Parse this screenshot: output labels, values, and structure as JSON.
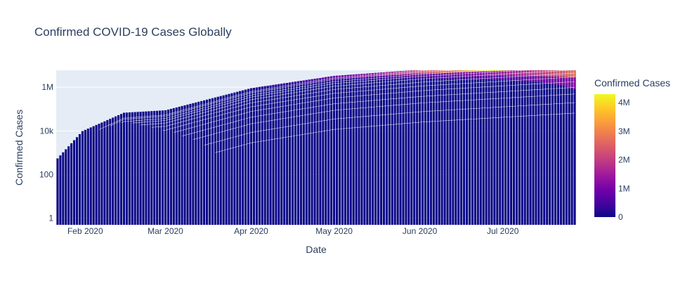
{
  "chart_data": {
    "type": "bar",
    "barmode": "stacked",
    "title": "Confirmed COVID-19 Cases Globally",
    "xlabel": "Date",
    "ylabel": "Confirmed Cases",
    "y_scale": "log",
    "x_range": [
      "2020-01-22",
      "2020-07-27"
    ],
    "x_ticks": [
      "Feb 2020",
      "Mar 2020",
      "Apr 2020",
      "May 2020",
      "Jun 2020",
      "Jul 2020"
    ],
    "x_tick_dates": [
      "2020-02-01",
      "2020-03-01",
      "2020-04-01",
      "2020-05-01",
      "2020-06-01",
      "2020-07-01"
    ],
    "y_ticks": [
      "1",
      "100",
      "10k",
      "1M"
    ],
    "y_tick_values": [
      1,
      100,
      10000,
      1000000
    ],
    "ylim": [
      0.5,
      6000000
    ],
    "grid": true,
    "colorbar": {
      "title": "Confirmed Cases",
      "ticks": [
        "0",
        "1M",
        "2M",
        "3M",
        "4M"
      ],
      "tick_values": [
        0,
        1000000,
        2000000,
        3000000,
        4000000
      ],
      "range": [
        0,
        4300000
      ],
      "colors": [
        "#0d0887",
        "#46039f",
        "#7201a8",
        "#9c179e",
        "#bd3786",
        "#d8576b",
        "#ed7953",
        "#fb9f3a",
        "#fdca26",
        "#f0f921"
      ]
    },
    "series_summary": [
      {
        "date": "2020-01-22",
        "top": 550
      },
      {
        "date": "2020-01-31",
        "top": 9800
      },
      {
        "date": "2020-02-15",
        "top": 68000
      },
      {
        "date": "2020-03-01",
        "top": 88000
      },
      {
        "date": "2020-04-01",
        "top": 900000
      },
      {
        "date": "2020-05-01",
        "top": 3300000
      },
      {
        "date": "2020-06-01",
        "top": 6300000
      },
      {
        "date": "2020-07-27",
        "top": 16400000
      }
    ],
    "largest_trace_max": 4300000
  }
}
